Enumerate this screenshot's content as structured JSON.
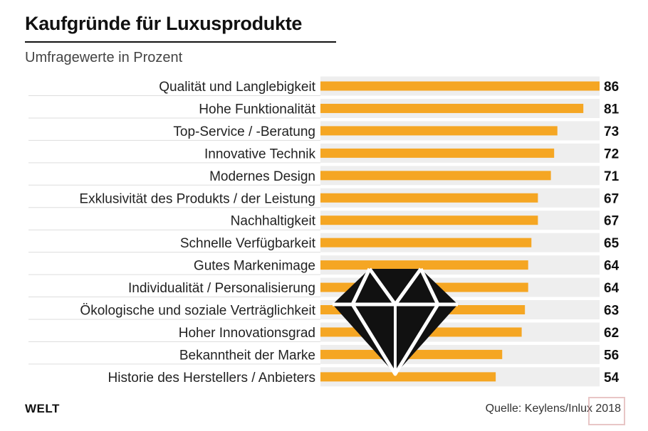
{
  "header": {
    "title": "Kaufgründe für Luxusprodukte",
    "subtitle": "Umfragewerte in Prozent"
  },
  "footer": {
    "brand": "WELT",
    "source": "Quelle: Keylens/Inlux 2018"
  },
  "colors": {
    "bar": "#f5a623",
    "track": "#eeeeee",
    "diamond": "#111111"
  },
  "icons": {
    "center": "diamond-icon"
  },
  "chart_data": {
    "type": "bar",
    "orientation": "horizontal",
    "categories": [
      "Qualität und Langlebigkeit",
      "Hohe Funktionalität",
      "Top-Service / -Beratung",
      "Innovative Technik",
      "Modernes Design",
      "Exklusivität des Produkts / der Leistung",
      "Nachhaltigkeit",
      "Schnelle Verfügbarkeit",
      "Gutes Markenimage",
      "Individualität / Personalisierung",
      "Ökologische und soziale Verträglichkeit",
      "Hoher Innovationsgrad",
      "Bekanntheit der Marke",
      "Historie des Herstellers / Anbieters"
    ],
    "values": [
      86,
      81,
      73,
      72,
      71,
      67,
      67,
      65,
      64,
      64,
      63,
      62,
      56,
      54
    ],
    "title": "Kaufgründe für Luxusprodukte",
    "xlabel": "",
    "ylabel": "",
    "xlim": [
      0,
      86
    ],
    "grid": false
  }
}
